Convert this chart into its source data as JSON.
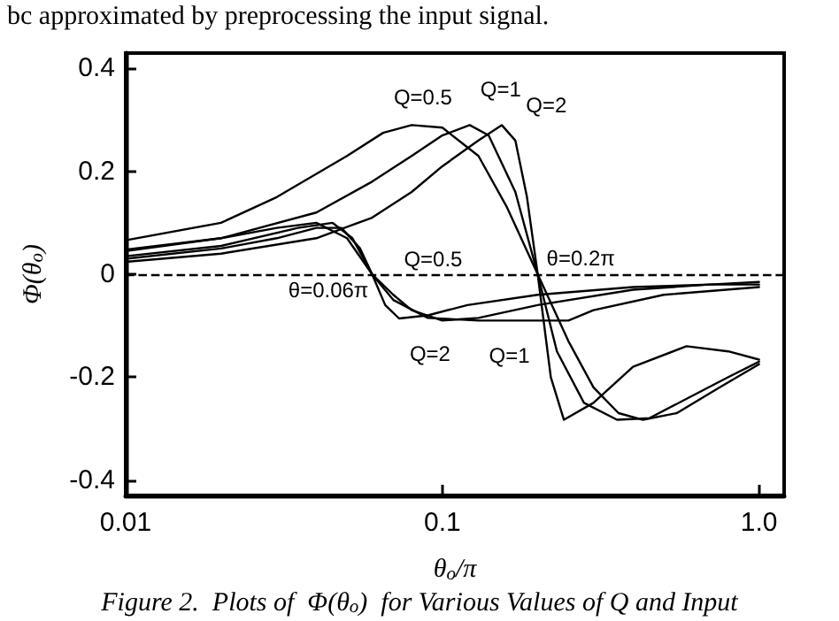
{
  "chart_data": {
    "type": "line",
    "xlabel": "θ$_{o}$/π",
    "ylabel": "Φ(θ$_{o}$)",
    "log": "x",
    "xlim": [
      0.01,
      1.2
    ],
    "xticks": [
      0.01,
      0.1,
      {
        "value": 1,
        "label": "1.0"
      }
    ],
    "ylim": [
      -0.43,
      0.43
    ],
    "yticks": [
      -0.4,
      -0.2,
      0,
      0.2,
      0.4
    ],
    "grid": false,
    "marker": "none",
    "line_style": "solid",
    "ref_lines": [
      {
        "axis": "y",
        "value": 0,
        "line_style": "dashed",
        "color": "#000000"
      }
    ],
    "series": [
      {
        "color": "#000000",
        "x": [
          0.01,
          0.02,
          0.03,
          0.05,
          0.065,
          0.08,
          0.1,
          0.13,
          0.16,
          0.2,
          0.25,
          0.3,
          0.36,
          0.43,
          0.55,
          0.75,
          1.0
        ],
        "values": [
          0.066,
          0.1,
          0.15,
          0.23,
          0.275,
          0.29,
          0.285,
          0.23,
          0.13,
          0.0,
          -0.13,
          -0.22,
          -0.27,
          -0.283,
          -0.27,
          -0.22,
          -0.175
        ]
      },
      {
        "color": "#000000",
        "x": [
          0.01,
          0.02,
          0.04,
          0.06,
          0.08,
          0.1,
          0.122,
          0.14,
          0.17,
          0.2,
          0.23,
          0.28,
          0.356,
          0.45,
          0.6,
          0.8,
          1.0
        ],
        "values": [
          0.048,
          0.07,
          0.12,
          0.18,
          0.23,
          0.27,
          0.29,
          0.27,
          0.16,
          0.0,
          -0.15,
          -0.25,
          -0.283,
          -0.28,
          -0.24,
          -0.2,
          -0.17
        ]
      },
      {
        "color": "#000000",
        "x": [
          0.01,
          0.02,
          0.04,
          0.06,
          0.08,
          0.1,
          0.13,
          0.154,
          0.17,
          0.185,
          0.2,
          0.22,
          0.242,
          0.3,
          0.4,
          0.59,
          0.8,
          1.0
        ],
        "values": [
          0.024,
          0.04,
          0.07,
          0.11,
          0.16,
          0.21,
          0.26,
          0.29,
          0.26,
          0.15,
          0.0,
          -0.2,
          -0.283,
          -0.25,
          -0.18,
          -0.14,
          -0.15,
          -0.166
        ]
      },
      {
        "color": "#000000",
        "x": [
          0.01,
          0.02,
          0.03,
          0.04,
          0.05,
          0.06,
          0.07,
          0.08,
          0.1,
          0.13,
          0.2,
          0.4,
          0.7,
          1.0
        ],
        "values": [
          0.045,
          0.07,
          0.09,
          0.1,
          0.07,
          0.0,
          -0.04,
          -0.07,
          -0.09,
          -0.085,
          -0.06,
          -0.03,
          -0.02,
          -0.015
        ]
      },
      {
        "color": "#000000",
        "x": [
          0.01,
          0.02,
          0.035,
          0.045,
          0.052,
          0.06,
          0.07,
          0.09,
          0.13,
          0.25,
          0.3,
          0.5,
          1.0
        ],
        "values": [
          0.035,
          0.055,
          0.09,
          0.1,
          0.07,
          0.0,
          -0.05,
          -0.085,
          -0.09,
          -0.09,
          -0.07,
          -0.04,
          -0.025
        ]
      },
      {
        "color": "#000000",
        "x": [
          0.01,
          0.02,
          0.03,
          0.04,
          0.048,
          0.055,
          0.06,
          0.066,
          0.073,
          0.09,
          0.12,
          0.2,
          0.4,
          0.7,
          1.0
        ],
        "values": [
          0.03,
          0.05,
          0.07,
          0.09,
          0.09,
          0.05,
          0.0,
          -0.06,
          -0.086,
          -0.08,
          -0.06,
          -0.04,
          -0.025,
          -0.02,
          -0.02
        ]
      }
    ],
    "annotations": [
      "bc approximated by preprocessing the input signal.",
      {
        "text": "Q=0.5",
        "x": 0.065,
        "y": 0.275
      },
      {
        "text": "Q=1",
        "x": 0.122,
        "y": 0.29
      },
      {
        "text": "Q=2",
        "x": 0.17,
        "y": 0.26
      },
      {
        "text": "Q=0.5",
        "x": 0.07,
        "y": -0.04
      },
      {
        "text": "θ=0.2π",
        "x": 0.2,
        "y": 0
      },
      {
        "text": "θ=0.06π",
        "x": 0.06,
        "y": 0
      },
      {
        "text": "Q=2",
        "x": 0.073,
        "y": -0.086
      },
      {
        "text": "Q=1",
        "x": 0.13,
        "y": -0.09
      },
      "Figure 2.  Plots of  Φ(θ$_{o}$)  for Various Values of Q and Input"
    ]
  }
}
